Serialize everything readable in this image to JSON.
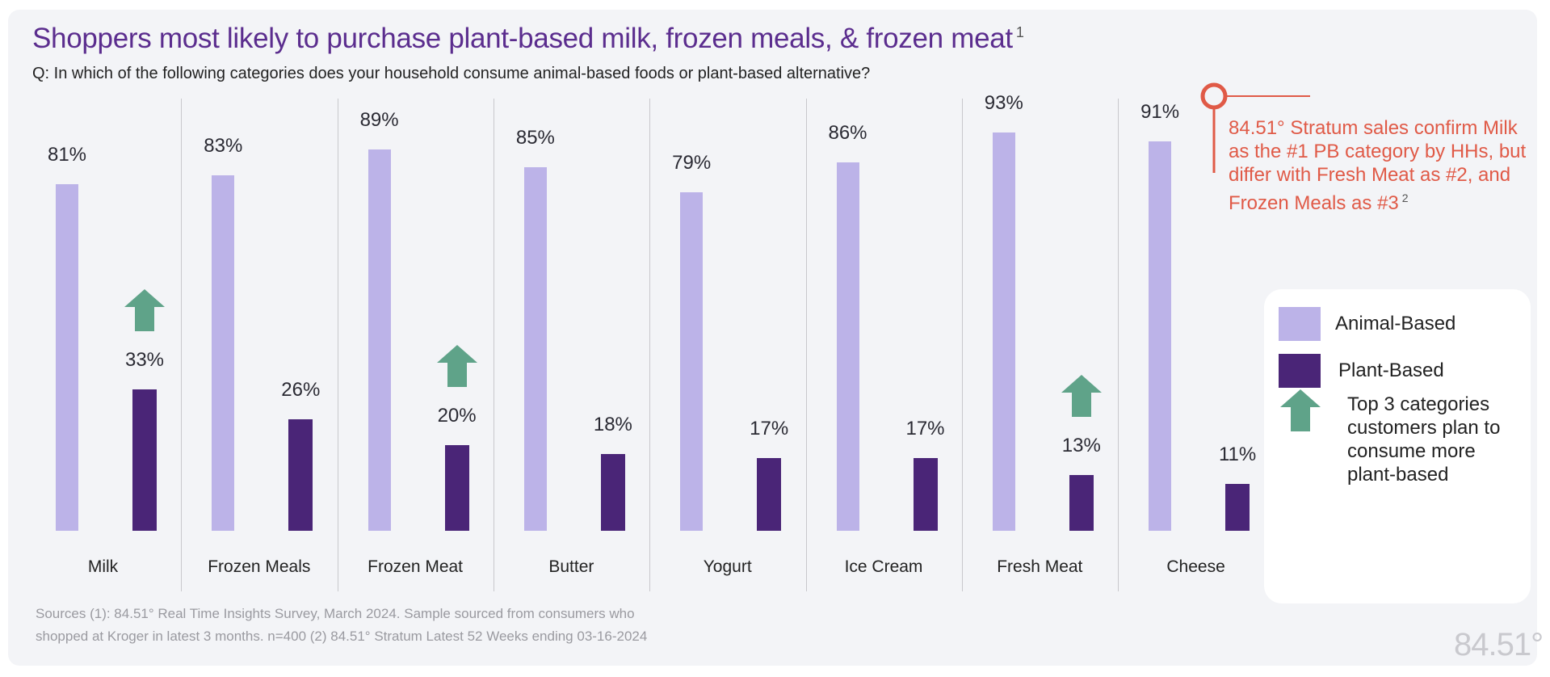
{
  "colors": {
    "animal": "#bcb3e8",
    "plant": "#4a2577",
    "arrow": "#5fa389",
    "callout": "#e05a47",
    "title": "#5b2d8e"
  },
  "chart_data": {
    "type": "bar",
    "title": "Shoppers most likely to purchase plant-based milk, frozen meals, & frozen meat",
    "title_footnote": "1",
    "subtitle": "Q: In which of the following categories does your household consume animal-based foods or plant-based alternative?",
    "categories": [
      "Milk",
      "Frozen Meals",
      "Frozen Meat",
      "Butter",
      "Yogurt",
      "Ice Cream",
      "Fresh Meat",
      "Cheese"
    ],
    "series": [
      {
        "name": "Animal-Based",
        "values": [
          81,
          83,
          89,
          85,
          79,
          86,
          93,
          91
        ],
        "labels": [
          "81%",
          "83%",
          "89%",
          "85%",
          "79%",
          "86%",
          "93%",
          "91%"
        ]
      },
      {
        "name": "Plant-Based",
        "values": [
          33,
          26,
          20,
          18,
          17,
          17,
          13,
          11
        ],
        "labels": [
          "33%",
          "26%",
          "20%",
          "18%",
          "17%",
          "17%",
          "13%",
          "11%"
        ]
      }
    ],
    "top3_marked": [
      "Milk",
      "Frozen Meat",
      "Fresh Meat"
    ],
    "ylim": [
      0,
      100
    ],
    "grid": false,
    "legend_placement": "right",
    "legend": {
      "animal": "Animal-Based",
      "plant": "Plant-Based",
      "arrow": "Top 3 categories customers plan to consume more plant-based"
    },
    "annotation": {
      "text": "84.51° Stratum sales confirm Milk as the #1 PB category by HHs, but differ with Fresh Meat as #2, and Frozen Meals as #3",
      "footnote": "2"
    }
  },
  "sources": {
    "line1": "Sources (1):  84.51° Real Time Insights Survey, March 2024. Sample sourced from consumers who",
    "line2": "shopped at Kroger in latest 3 months. n=400 (2) 84.51° Stratum Latest 52 Weeks ending 03-16-2024"
  },
  "logo": "84.51°"
}
